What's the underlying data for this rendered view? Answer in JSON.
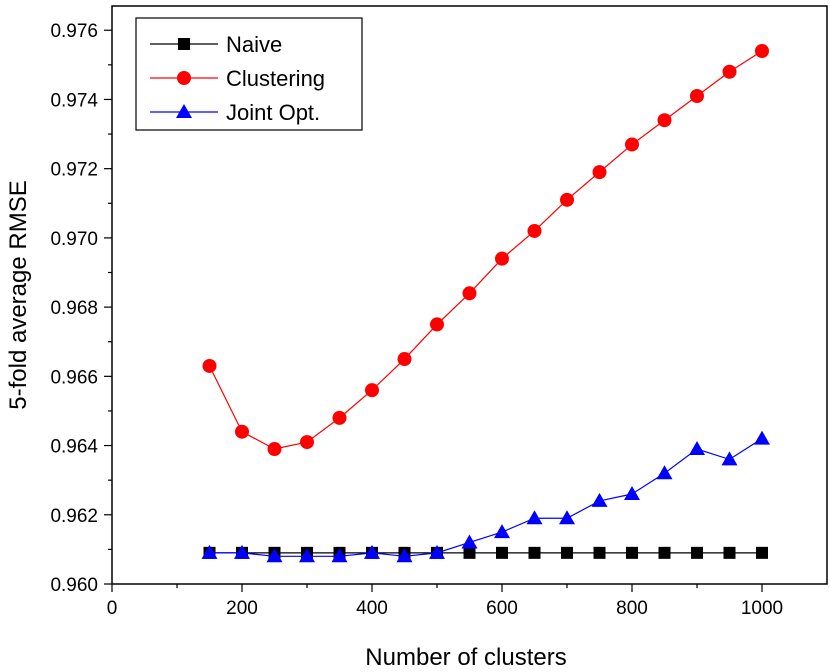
{
  "chart_data": {
    "type": "line",
    "xlabel": "Number of clusters",
    "ylabel": "5-fold average RMSE",
    "xlim": [
      0,
      1100
    ],
    "ylim": [
      0.96,
      0.9767
    ],
    "x_ticks": [
      0,
      200,
      400,
      600,
      800,
      1000
    ],
    "x_tick_labels": [
      "0",
      "200",
      "400",
      "600",
      "800",
      "1000"
    ],
    "y_ticks": [
      0.96,
      0.962,
      0.964,
      0.966,
      0.968,
      0.97,
      0.972,
      0.974,
      0.976
    ],
    "y_tick_labels": [
      "0.960",
      "0.962",
      "0.964",
      "0.966",
      "0.968",
      "0.970",
      "0.972",
      "0.974",
      "0.976"
    ],
    "legend_position": "top-left",
    "x": [
      150,
      200,
      250,
      300,
      350,
      400,
      450,
      500,
      550,
      600,
      650,
      700,
      750,
      800,
      850,
      900,
      950,
      1000
    ],
    "series": [
      {
        "name": "Naive",
        "color": "#000000",
        "marker": "square",
        "values": [
          0.9609,
          0.9609,
          0.9609,
          0.9609,
          0.9609,
          0.9609,
          0.9609,
          0.9609,
          0.9609,
          0.9609,
          0.9609,
          0.9609,
          0.9609,
          0.9609,
          0.9609,
          0.9609,
          0.9609,
          0.9609
        ]
      },
      {
        "name": "Clustering",
        "color": "#ff0000",
        "marker": "circle",
        "values": [
          0.9663,
          0.9644,
          0.9639,
          0.9641,
          0.9648,
          0.9656,
          0.9665,
          0.9675,
          0.9684,
          0.9694,
          0.9702,
          0.9711,
          0.9719,
          0.9727,
          0.9734,
          0.9741,
          0.9748,
          0.9754
        ]
      },
      {
        "name": "Joint Opt.",
        "color": "#0000ff",
        "marker": "triangle",
        "values": [
          0.9609,
          0.9609,
          0.9608,
          0.9608,
          0.9608,
          0.9609,
          0.9608,
          0.9609,
          0.9612,
          0.9615,
          0.9619,
          0.9619,
          0.9624,
          0.9626,
          0.9632,
          0.9639,
          0.9636,
          0.9642
        ]
      }
    ]
  }
}
